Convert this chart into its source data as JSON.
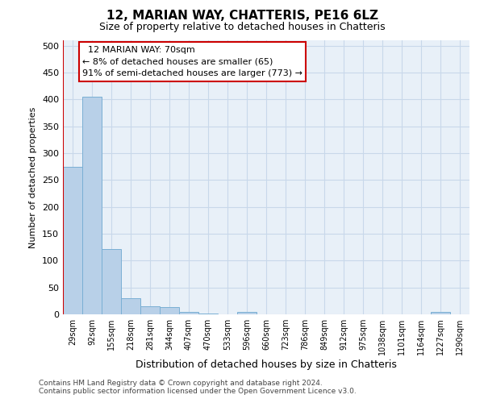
{
  "title": "12, MARIAN WAY, CHATTERIS, PE16 6LZ",
  "subtitle": "Size of property relative to detached houses in Chatteris",
  "xlabel": "Distribution of detached houses by size in Chatteris",
  "ylabel": "Number of detached properties",
  "bin_labels": [
    "29sqm",
    "92sqm",
    "155sqm",
    "218sqm",
    "281sqm",
    "344sqm",
    "407sqm",
    "470sqm",
    "533sqm",
    "596sqm",
    "660sqm",
    "723sqm",
    "786sqm",
    "849sqm",
    "912sqm",
    "975sqm",
    "1038sqm",
    "1101sqm",
    "1164sqm",
    "1227sqm",
    "1290sqm"
  ],
  "bar_values": [
    275,
    405,
    122,
    30,
    15,
    14,
    4,
    2,
    0,
    4,
    0,
    0,
    0,
    0,
    0,
    0,
    0,
    0,
    0,
    4,
    0
  ],
  "bar_color": "#b8d0e8",
  "bar_edge_color": "#7aafd4",
  "grid_color": "#c8d8ea",
  "background_color": "#e8f0f8",
  "property_line_color": "#cc0000",
  "property_line_x": -0.5,
  "annotation_title": "12 MARIAN WAY: 70sqm",
  "annotation_line1": "← 8% of detached houses are smaller (65)",
  "annotation_line2": "91% of semi-detached houses are larger (773) →",
  "annotation_box_facecolor": "#ffffff",
  "annotation_box_edgecolor": "#cc0000",
  "ylim": [
    0,
    510
  ],
  "yticks": [
    0,
    50,
    100,
    150,
    200,
    250,
    300,
    350,
    400,
    450,
    500
  ],
  "footer1": "Contains HM Land Registry data © Crown copyright and database right 2024.",
  "footer2": "Contains public sector information licensed under the Open Government Licence v3.0."
}
